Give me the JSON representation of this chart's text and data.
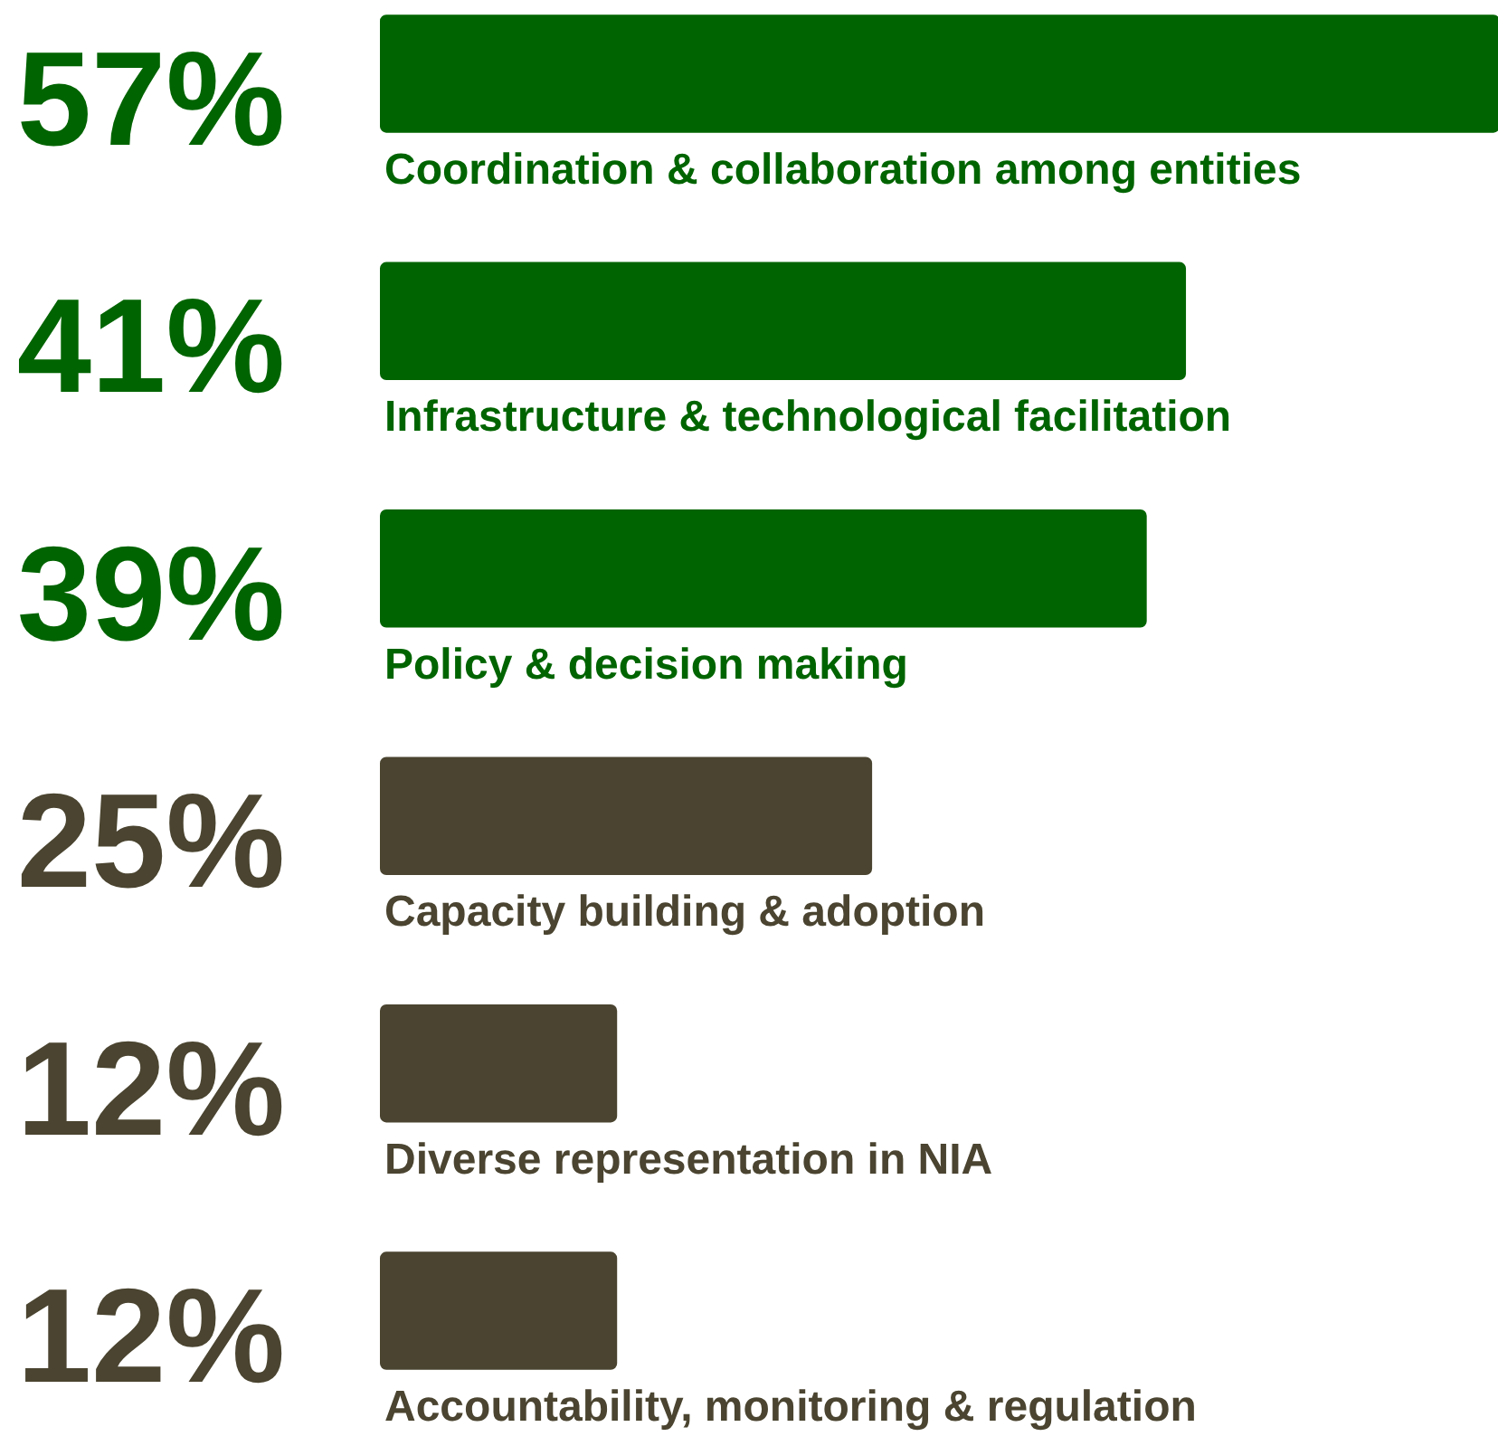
{
  "chart_data": {
    "type": "bar",
    "orientation": "horizontal",
    "categories": [
      "Coordination & collaboration among entities",
      "Infrastructure & technological facilitation",
      "Policy & decision making",
      "Capacity building & adoption",
      "Diverse representation in NIA",
      "Accountability, monitoring & regulation"
    ],
    "values": [
      57,
      41,
      39,
      25,
      12,
      12
    ],
    "colors": [
      "#006400",
      "#006400",
      "#006400",
      "#4a4430",
      "#4a4430",
      "#4a4430"
    ],
    "value_labels": [
      "57%",
      "41%",
      "39%",
      "25%",
      "12%",
      "12%"
    ],
    "grid": false
  }
}
